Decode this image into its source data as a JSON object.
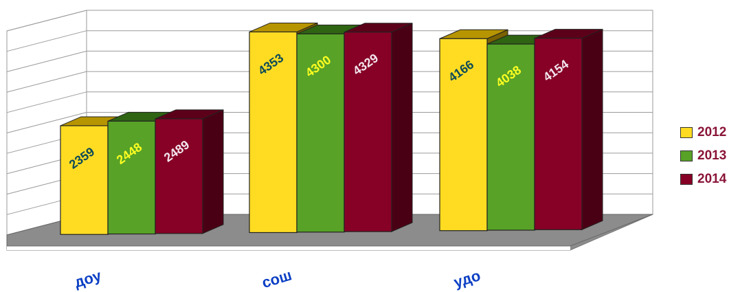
{
  "chart_data": {
    "type": "bar",
    "categories": [
      "доу",
      "сош",
      "удо"
    ],
    "series": [
      {
        "name": "2012",
        "values": [
          2359,
          4353,
          4166
        ]
      },
      {
        "name": "2013",
        "values": [
          2448,
          4300,
          4038
        ]
      },
      {
        "name": "2014",
        "values": [
          2489,
          4329,
          4154
        ]
      }
    ],
    "ylim": [
      0,
      5000
    ],
    "grid": true,
    "legend_position": "right",
    "colors": {
      "2012": {
        "front": "#ffdc22",
        "top": "#b79500",
        "side": "#7a6200",
        "label": "#0c4a57"
      },
      "2013": {
        "front": "#58a227",
        "top": "#2f6412",
        "side": "#2a4e11",
        "label": "#ffff22"
      },
      "2014": {
        "front": "#870026",
        "top": "#5c0019",
        "side": "#4a0014",
        "label": "#f2e6ee"
      }
    },
    "floor_color": "#8c8c8c",
    "category_label_color": "#0b3fc4"
  }
}
